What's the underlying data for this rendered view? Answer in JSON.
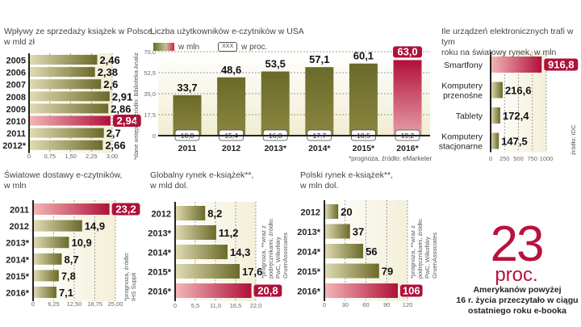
{
  "colors": {
    "olive_dark": "#6b6a2a",
    "olive_light": "#e2dcb4",
    "red_dark": "#b0103a",
    "red_light": "#f2b7b7",
    "plot_bg": "#f6f3e2"
  },
  "chart_data": [
    {
      "id": "sales",
      "type": "bar",
      "orientation": "horizontal",
      "title": [
        "Wpływy ze sprzedaży książek w Polsce,",
        "w mld zł"
      ],
      "categories": [
        "2005",
        "2006",
        "2007",
        "2008",
        "2009",
        "2010",
        "2011",
        "2012*"
      ],
      "values": [
        2.46,
        2.38,
        2.6,
        2.91,
        2.86,
        2.94,
        2.7,
        2.66
      ],
      "value_labels": [
        "2,46",
        "2,38",
        "2,6",
        "2,91",
        "2,86",
        "2,94",
        "2,7",
        "2,66"
      ],
      "highlight": "2010",
      "xlim": [
        0,
        3
      ],
      "ticks": [
        "0",
        "0,75",
        "1,50",
        "2,25",
        "3,00"
      ],
      "grid": true,
      "note": "*dane wstępne, źródło: Biblioteka Analiz"
    },
    {
      "id": "usa",
      "type": "bar",
      "orientation": "vertical",
      "title": [
        "Liczba użytkowników e-czytników w USA"
      ],
      "legend": {
        "series": "w mln",
        "box_sample": "XXX",
        "box_label": "w proc."
      },
      "categories": [
        "2011",
        "2012",
        "2013*",
        "2014*",
        "2015*",
        "2016*"
      ],
      "values": [
        33.7,
        48.6,
        53.5,
        57.1,
        60.1,
        63.0
      ],
      "value_labels": [
        "33,7",
        "48,6",
        "53,5",
        "57,1",
        "60,1",
        "63,0"
      ],
      "percent_labels": [
        "10,8",
        "15,4",
        "16,8",
        "17,7",
        "18,5",
        "19,2"
      ],
      "highlight": "2016*",
      "ylim": [
        0,
        70
      ],
      "ticks": [
        "0",
        "17,5",
        "35,0",
        "52,5",
        "70,0"
      ],
      "grid": true,
      "note": "*prognoza, źródło: eMarketer"
    },
    {
      "id": "devices",
      "type": "bar",
      "orientation": "horizontal",
      "title": [
        "Ile urządzeń elektronicznych trafi w tym",
        "roku na światowy rynek, w mln"
      ],
      "categories": [
        "Smartfony",
        "Komputery przenośne",
        "Tablety",
        "Komputery stacjonarne"
      ],
      "category_lines": [
        [
          "Smartfony"
        ],
        [
          "Komputery",
          "przenośne"
        ],
        [
          "Tablety"
        ],
        [
          "Komputery",
          "stacjonarne"
        ]
      ],
      "values": [
        916.8,
        216.6,
        172.4,
        147.5
      ],
      "value_labels": [
        "916,8",
        "216,6",
        "172,4",
        "147,5"
      ],
      "highlight": "Smartfony",
      "xlim": [
        0,
        1000
      ],
      "ticks": [
        "0",
        "250",
        "500",
        "750",
        "1000"
      ],
      "grid": true,
      "note": "źródło: IDC"
    },
    {
      "id": "ereaders",
      "type": "bar",
      "orientation": "horizontal",
      "title": [
        "Światowe dostawy e-czytników,",
        "w mln"
      ],
      "categories": [
        "2011",
        "2012",
        "2013*",
        "2014*",
        "2015*",
        "2016*"
      ],
      "values": [
        23.2,
        14.9,
        10.9,
        8.7,
        7.8,
        7.1
      ],
      "value_labels": [
        "23,2",
        "14,9",
        "10,9",
        "8,7",
        "7,8",
        "7,1"
      ],
      "highlight": "2011",
      "xlim": [
        0,
        25
      ],
      "ticks": [
        "0",
        "6,25",
        "12,50",
        "18,75",
        "25,00"
      ],
      "grid": true,
      "note": "*prognoza, źródło: IHS Suppli"
    },
    {
      "id": "global",
      "type": "bar",
      "orientation": "horizontal",
      "title": [
        "Globalny rynek e-książek**,",
        "w mld dol."
      ],
      "categories": [
        "2012",
        "2013*",
        "2014*",
        "2015*",
        "2016*"
      ],
      "values": [
        8.2,
        11.2,
        14.3,
        17.6,
        20.8
      ],
      "value_labels": [
        "8,2",
        "11,2",
        "14,3",
        "17,6",
        "20,8"
      ],
      "highlight": "2016*",
      "xlim": [
        0,
        22
      ],
      "ticks": [
        "0",
        "5,5",
        "11,0",
        "16,5",
        "22,0"
      ],
      "grid": true,
      "note": "*prognoza, **wraz z podręcznikami, źródło: PwC, Wilkofsky GruenAssociates"
    },
    {
      "id": "poland",
      "type": "bar",
      "orientation": "horizontal",
      "title": [
        "Polski rynek e-książek**,",
        "w mln dol."
      ],
      "categories": [
        "2012",
        "2013*",
        "2014*",
        "2015*",
        "2016*"
      ],
      "values": [
        20,
        37,
        56,
        79,
        106
      ],
      "value_labels": [
        "20",
        "37",
        "56",
        "79",
        "106"
      ],
      "highlight": "2016*",
      "xlim": [
        0,
        120
      ],
      "ticks": [
        "0",
        "30",
        "60",
        "90",
        "120"
      ],
      "grid": true,
      "note": "*prognoza, **wraz z podręcznikami, źródło: PwC, Wilkofsky GruenAssociates"
    }
  ],
  "callout": {
    "number": "23",
    "unit": "proc.",
    "text": [
      "Amerykanów powyżej",
      "16 r. życia przeczytało w ciągu",
      "ostatniego roku e-booka"
    ]
  }
}
